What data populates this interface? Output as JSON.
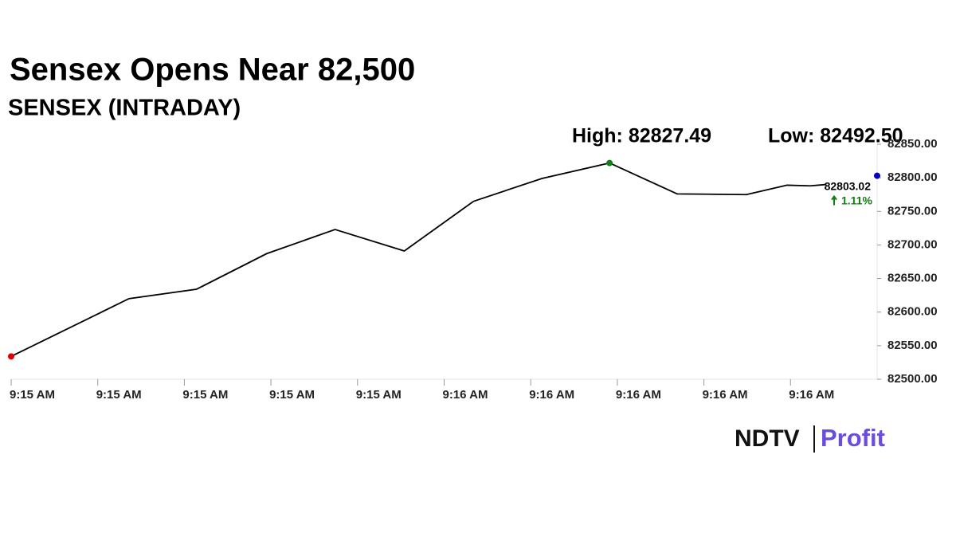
{
  "chart_data": {
    "type": "line",
    "title": "Sensex Opens Near 82,500",
    "subtitle": "SENSEX (INTRADAY)",
    "annotations": {
      "high": "High: 82827.49",
      "low": "Low: 82492.50",
      "last": 82803.02,
      "change": "1.11%"
    },
    "xlim": [
      0,
      10
    ],
    "xticks": [
      {
        "value": 0,
        "label": "9:15 AM"
      },
      {
        "value": 1,
        "label": "9:15 AM"
      },
      {
        "value": 2,
        "label": "9:15 AM"
      },
      {
        "value": 3,
        "label": "9:15 AM"
      },
      {
        "value": 4,
        "label": "9:15 AM"
      },
      {
        "value": 5,
        "label": "9:16 AM"
      },
      {
        "value": 6,
        "label": "9:16 AM"
      },
      {
        "value": 7,
        "label": "9:16 AM"
      },
      {
        "value": 8,
        "label": "9:16 AM"
      },
      {
        "value": 9,
        "label": "9:16 AM"
      }
    ],
    "ylim": [
      82500,
      82850
    ],
    "yticks": [
      {
        "value": 82500,
        "label": "82500.00"
      },
      {
        "value": 82550,
        "label": "82550.00"
      },
      {
        "value": 82600,
        "label": "82600.00"
      },
      {
        "value": 82650,
        "label": "82650.00"
      },
      {
        "value": 82700,
        "label": "82700.00"
      },
      {
        "value": 82750,
        "label": "82750.00"
      },
      {
        "value": 82800,
        "label": "82800.00"
      },
      {
        "value": 82850,
        "label": "82850.00"
      }
    ],
    "series": [
      {
        "color": "#000000",
        "x": [
          0,
          1.36,
          2.14,
          2.95,
          3.74,
          4.54,
          5.34,
          6.13,
          6.91,
          7.69,
          8.49,
          8.96,
          9.23,
          9.41
        ],
        "values": [
          82534,
          82620,
          82634,
          82687,
          82723,
          82691,
          82765,
          82799,
          82822,
          82776,
          82775,
          82789,
          82788,
          82790
        ]
      }
    ],
    "colors": {
      "open": "#e00000",
      "high": "#108010",
      "last": "#0000c0",
      "up": "#108010"
    },
    "logo": {
      "left": "NDTV",
      "right": "Profit"
    }
  }
}
